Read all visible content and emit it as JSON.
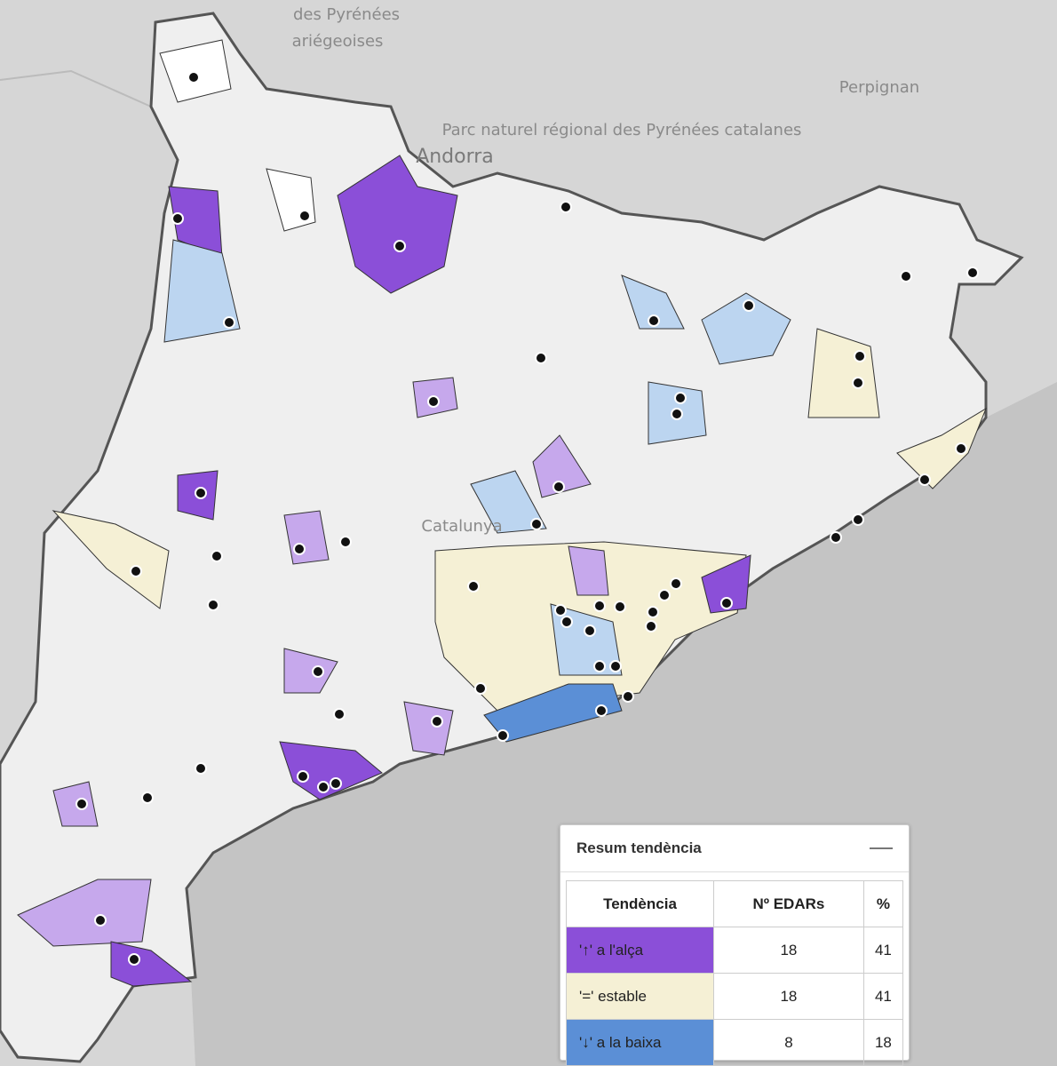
{
  "map_labels": [
    "des Pyrénées",
    "ariégeoises",
    "Andorra",
    "Parc naturel régional des Pyrénées catalanes",
    "Perpignan",
    "Catalunya"
  ],
  "panel": {
    "title": "Resum tendència",
    "table": {
      "header": [
        "Tendència",
        "Nº EDARs",
        "%"
      ],
      "rows": [
        [
          "'↑' a l'alça",
          18,
          41
        ],
        [
          "'=' estable",
          18,
          41
        ],
        [
          "'↓' a la baixa",
          8,
          18
        ]
      ]
    }
  }
}
